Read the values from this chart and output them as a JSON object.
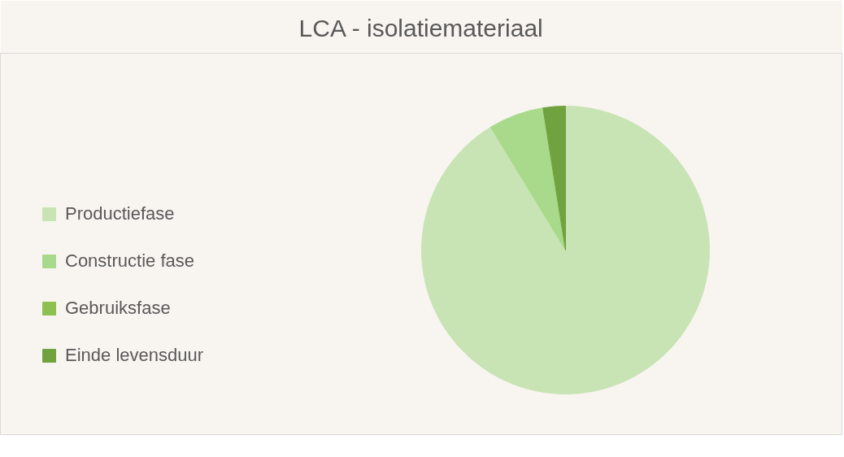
{
  "chart_data": {
    "type": "pie",
    "title": "LCA - isolatiemateriaal",
    "categories": [
      "Productiefase",
      "Constructie fase",
      "Gebruiksfase",
      "Einde levensduur"
    ],
    "values": [
      91.3,
      6.2,
      0,
      2.5
    ],
    "colors": [
      "#c9e4b4",
      "#a9d98a",
      "#8cc152",
      "#70a33f"
    ],
    "legend": "left"
  }
}
